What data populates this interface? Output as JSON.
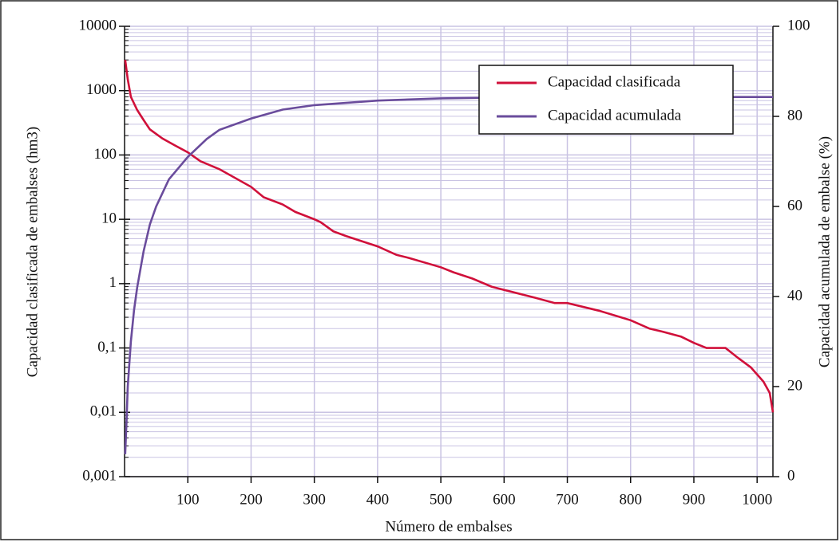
{
  "chart_data": {
    "type": "line",
    "x_label": "Número de embalses",
    "y_label": "Capacidad clasificada de embalses (hm3)",
    "y2_label": "Capacidad acumulada de embalse (%)",
    "xlim": [
      0,
      1025
    ],
    "xticks": [
      100,
      200,
      300,
      400,
      500,
      600,
      700,
      800,
      900,
      1000
    ],
    "ylim": [
      0.001,
      10000
    ],
    "y_scale": "log",
    "yticks": [
      {
        "value": 0.001,
        "label": "0,001"
      },
      {
        "value": 0.01,
        "label": "0,01"
      },
      {
        "value": 0.1,
        "label": "0,1"
      },
      1,
      10,
      100,
      1000,
      10000
    ],
    "y2lim": [
      0,
      100
    ],
    "y2ticks": [
      0,
      20,
      40,
      60,
      80,
      100
    ],
    "grid": true,
    "minor_grid": true,
    "grid_color": "#c9c3e3",
    "legend_position": "upper right",
    "series": [
      {
        "name": "Capacidad clasificada",
        "color": "#d0103a",
        "x": [
          1,
          5,
          10,
          20,
          30,
          40,
          60,
          80,
          100,
          120,
          150,
          200,
          220,
          250,
          270,
          300,
          310,
          330,
          350,
          400,
          430,
          450,
          500,
          520,
          550,
          580,
          600,
          650,
          680,
          700,
          750,
          800,
          830,
          850,
          880,
          900,
          920,
          950,
          970,
          990,
          1010,
          1020,
          1025
        ],
        "values": [
          3000,
          1500,
          800,
          500,
          350,
          250,
          180,
          140,
          110,
          80,
          60,
          32,
          22,
          17,
          13,
          10,
          9,
          6.5,
          5.5,
          3.8,
          2.8,
          2.5,
          1.8,
          1.5,
          1.2,
          0.9,
          0.8,
          0.6,
          0.5,
          0.5,
          0.38,
          0.27,
          0.2,
          0.18,
          0.15,
          0.12,
          0.1,
          0.1,
          0.07,
          0.05,
          0.03,
          0.02,
          0.01
        ]
      },
      {
        "name": "Capacidad acumulada",
        "color": "#6a4c9c",
        "axis": "y2",
        "x": [
          1,
          3,
          5,
          10,
          15,
          20,
          30,
          40,
          50,
          70,
          100,
          130,
          150,
          200,
          250,
          300,
          350,
          400,
          500,
          600,
          800,
          1025
        ],
        "values": [
          5,
          12,
          20,
          30,
          37,
          42,
          50,
          56,
          60,
          66,
          71,
          75,
          77,
          79.5,
          81.5,
          82.5,
          83,
          83.5,
          84,
          84.2,
          84.3,
          84.3
        ]
      }
    ]
  }
}
